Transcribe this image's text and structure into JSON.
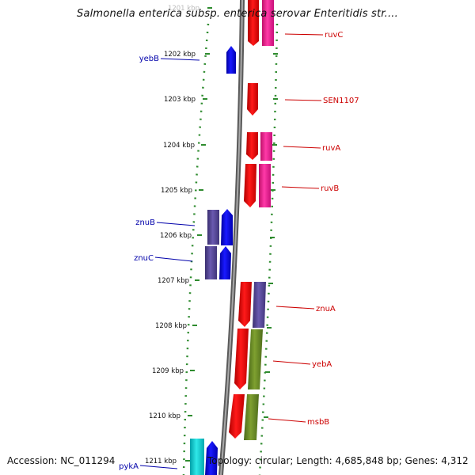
{
  "title": "Salmonella enterica subsp. enterica serovar Enteritidis str....",
  "footer": {
    "accession": "Accession: NC_011294",
    "stats": "Topology: circular; Length: 4,685,848 bp; Genes: 4,312"
  },
  "ticks": [
    "1201 kbp",
    "1202 kbp",
    "1203 kbp",
    "1204 kbp",
    "1205 kbp",
    "1206 kbp",
    "1207 kbp",
    "1208 kbp",
    "1209 kbp",
    "1210 kbp",
    "1211 kbp"
  ],
  "genes_left": [
    "yebB",
    "znuB",
    "znuC",
    "pykA"
  ],
  "genes_right": [
    "ruvC",
    "SEN1107",
    "ruvA",
    "ruvB",
    "znuA",
    "yebA",
    "msbB"
  ],
  "colors": {
    "forward_cds": "#0000ff",
    "reverse_cds": "#ff0000",
    "magenta_feature": "#ff1493",
    "slate_feature": "#5a4a9a",
    "olive_feature": "#6b8e23",
    "cyan_feature": "#00c8c8",
    "tick_green": "#2e8b2e",
    "label_blue": "#0000aa",
    "label_red": "#cc0000"
  }
}
